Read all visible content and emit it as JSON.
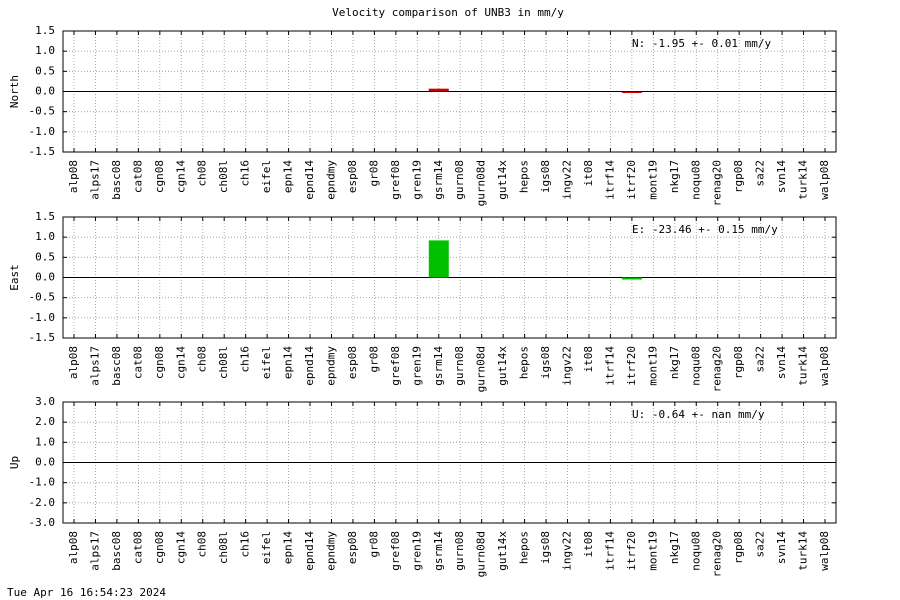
{
  "title": "Velocity comparison of UNB3 in mm/y",
  "footer": "Tue Apr 16 16:54:23 2024",
  "chart_data": [
    {
      "type": "bar",
      "ylabel": "North",
      "annotation": "N:  -1.95 +-  0.01 mm/y",
      "color": "#cc0000",
      "categories": [
        "alp08",
        "alps17",
        "basc08",
        "cat08",
        "cgn08",
        "cgn14",
        "ch08",
        "ch08l",
        "ch16",
        "eifel",
        "epn14",
        "epnd14",
        "epndmy",
        "esp08",
        "gr08",
        "gref08",
        "gren19",
        "gsrm14",
        "gurn08",
        "gurn08d",
        "gut14x",
        "hepos",
        "igs08",
        "ingv22",
        "it08",
        "itrf14",
        "itrf20",
        "mont19",
        "nkg17",
        "noqu08",
        "renag20",
        "rgp08",
        "sa22",
        "svn14",
        "turk14",
        "walp08"
      ],
      "values": [
        null,
        null,
        null,
        null,
        null,
        null,
        null,
        null,
        null,
        null,
        null,
        null,
        null,
        null,
        null,
        null,
        null,
        0.07,
        null,
        null,
        null,
        null,
        null,
        null,
        null,
        null,
        -0.02,
        null,
        null,
        null,
        null,
        null,
        null,
        null,
        null,
        null
      ],
      "ylim": [
        -1.5,
        1.5
      ],
      "yticks": [
        -1.5,
        {
          "value": -1,
          "label": "-1.0"
        },
        -0.5,
        {
          "value": 0,
          "label": "0.0"
        },
        0.5,
        {
          "value": 1,
          "label": "1.0"
        },
        1.5
      ],
      "grid": true
    },
    {
      "type": "bar",
      "ylabel": "East",
      "annotation": "E: -23.46 +-  0.15 mm/y",
      "color": "#00c000",
      "categories": [
        "alp08",
        "alps17",
        "basc08",
        "cat08",
        "cgn08",
        "cgn14",
        "ch08",
        "ch08l",
        "ch16",
        "eifel",
        "epn14",
        "epnd14",
        "epndmy",
        "esp08",
        "gr08",
        "gref08",
        "gren19",
        "gsrm14",
        "gurn08",
        "gurn08d",
        "gut14x",
        "hepos",
        "igs08",
        "ingv22",
        "it08",
        "itrf14",
        "itrf20",
        "mont19",
        "nkg17",
        "noqu08",
        "renag20",
        "rgp08",
        "sa22",
        "svn14",
        "turk14",
        "walp08"
      ],
      "values": [
        null,
        null,
        null,
        null,
        null,
        null,
        null,
        null,
        null,
        null,
        null,
        null,
        null,
        null,
        null,
        null,
        null,
        0.92,
        null,
        null,
        null,
        null,
        null,
        null,
        null,
        null,
        -0.05,
        null,
        null,
        null,
        null,
        null,
        null,
        null,
        null,
        null
      ],
      "ylim": [
        -1.5,
        1.5
      ],
      "yticks": [
        -1.5,
        {
          "value": -1,
          "label": "-1.0"
        },
        -0.5,
        {
          "value": 0,
          "label": "0.0"
        },
        0.5,
        {
          "value": 1,
          "label": "1.0"
        },
        1.5
      ],
      "grid": true
    },
    {
      "type": "bar",
      "ylabel": "Up",
      "annotation": "U:  -0.64 +-   nan mm/y",
      "categories": [
        "alp08",
        "alps17",
        "basc08",
        "cat08",
        "cgn08",
        "cgn14",
        "ch08",
        "ch08l",
        "ch16",
        "eifel",
        "epn14",
        "epnd14",
        "epndmy",
        "esp08",
        "gr08",
        "gref08",
        "gren19",
        "gsrm14",
        "gurn08",
        "gurn08d",
        "gut14x",
        "hepos",
        "igs08",
        "ingv22",
        "it08",
        "itrf14",
        "itrf20",
        "mont19",
        "nkg17",
        "noqu08",
        "renag20",
        "rgp08",
        "sa22",
        "svn14",
        "turk14",
        "walp08"
      ],
      "values": [
        null,
        null,
        null,
        null,
        null,
        null,
        null,
        null,
        null,
        null,
        null,
        null,
        null,
        null,
        null,
        null,
        null,
        null,
        null,
        null,
        null,
        null,
        null,
        null,
        null,
        null,
        null,
        null,
        null,
        null,
        null,
        null,
        null,
        null,
        null,
        null
      ],
      "ylim": [
        -3,
        3
      ],
      "yticks": [
        {
          "value": -3,
          "label": "-3.0"
        },
        {
          "value": -2,
          "label": "-2.0"
        },
        {
          "value": -1,
          "label": "-1.0"
        },
        {
          "value": 0,
          "label": "0.0"
        },
        {
          "value": 1,
          "label": "1.0"
        },
        {
          "value": 2,
          "label": "2.0"
        },
        {
          "value": 3,
          "label": "3.0"
        }
      ],
      "grid": true
    }
  ]
}
